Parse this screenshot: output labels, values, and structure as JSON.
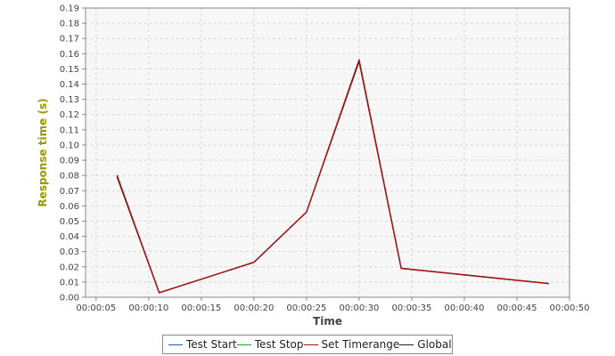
{
  "chart_data": {
    "type": "line",
    "title": "",
    "xlabel": "Time",
    "ylabel": "Response time (s)",
    "x_ticks": [
      "00:00:05",
      "00:00:10",
      "00:00:15",
      "00:00:20",
      "00:00:25",
      "00:00:30",
      "00:00:35",
      "00:00:40",
      "00:00:45",
      "00:00:50"
    ],
    "y_ticks": [
      "0.00",
      "0.01",
      "0.02",
      "0.03",
      "0.04",
      "0.05",
      "0.06",
      "0.07",
      "0.08",
      "0.09",
      "0.10",
      "0.11",
      "0.12",
      "0.13",
      "0.14",
      "0.15",
      "0.16",
      "0.17",
      "0.18",
      "0.19"
    ],
    "xlim": [
      "00:00:04",
      "00:00:50"
    ],
    "ylim": [
      0,
      0.19
    ],
    "grid": true,
    "legend_position": "bottom",
    "series": [
      {
        "name": "Test Start",
        "color": "#2255cc",
        "points": []
      },
      {
        "name": "Test Stop",
        "color": "#22aa22",
        "points": []
      },
      {
        "name": "Set Timerange",
        "color": "#aa1111",
        "points": [
          {
            "x": "00:00:07",
            "y": 0.08
          },
          {
            "x": "00:00:11",
            "y": 0.003
          },
          {
            "x": "00:00:20",
            "y": 0.023
          },
          {
            "x": "00:00:25",
            "y": 0.056
          },
          {
            "x": "00:00:30",
            "y": 0.156
          },
          {
            "x": "00:00:34",
            "y": 0.019
          },
          {
            "x": "00:00:48",
            "y": 0.009
          }
        ]
      },
      {
        "name": "Global",
        "color": "#222222",
        "points": [
          {
            "x": "00:00:07",
            "y": 0.079
          },
          {
            "x": "00:00:11",
            "y": 0.003
          },
          {
            "x": "00:00:20",
            "y": 0.023
          },
          {
            "x": "00:00:25",
            "y": 0.056
          },
          {
            "x": "00:00:30",
            "y": 0.155
          },
          {
            "x": "00:00:34",
            "y": 0.019
          },
          {
            "x": "00:00:48",
            "y": 0.009
          }
        ]
      }
    ]
  },
  "style": {
    "plot_background": "#f7f7f7",
    "grid_color": "#d6d6d6",
    "axis_color": "#888888",
    "ylabel_color": "#999900",
    "xlabel_color": "#444444"
  }
}
